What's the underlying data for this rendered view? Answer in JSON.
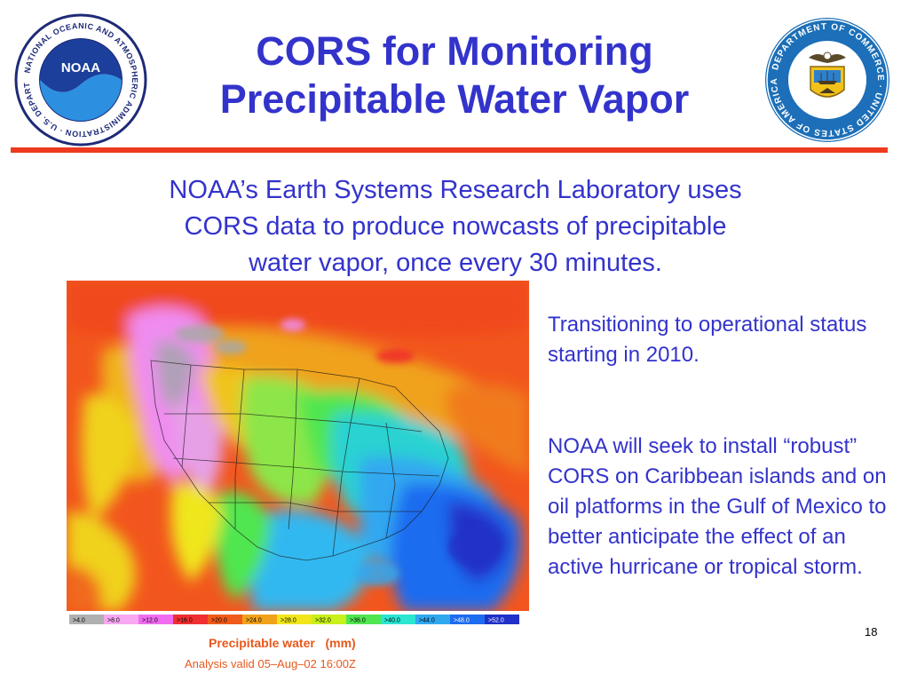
{
  "slide": {
    "title_line1": "CORS for Monitoring",
    "title_line2": "Precipitable Water Vapor",
    "subtitle_line1": "NOAA’s Earth Systems Research Laboratory uses",
    "subtitle_line2": "CORS data to produce nowcasts of precipitable",
    "subtitle_line3": "water vapor, once every 30 minutes.",
    "note1": "Transitioning to operational status starting in 2010.",
    "note2": "NOAA will seek to install “robust” CORS on Caribbean islands and on oil platforms in the Gulf of Mexico to better anticipate the effect of an active hurricane or tropical storm.",
    "page_number": "18"
  },
  "noaa_logo": {
    "text": "NOAA",
    "ring_text": "NATIONAL OCEANIC AND ATMOSPHERIC ADMINISTRATION · U.S. DEPARTMENT OF COMMERCE"
  },
  "doc_logo": {
    "ring_text": "DEPARTMENT OF COMMERCE · UNITED STATES OF AMERICA"
  },
  "map": {
    "legend": [
      ">4.0",
      ">8.0",
      ">12.0",
      ">16.0",
      ">20.0",
      ">24.0",
      ">28.0",
      ">32.0",
      ">36.0",
      ">40.0",
      ">44.0",
      ">48.0",
      ">52.0"
    ],
    "legend_colors": [
      "#b0b0b0",
      "#f7a8f0",
      "#f06cf0",
      "#f03030",
      "#f05a1a",
      "#f0a21a",
      "#f0e61a",
      "#c8f01a",
      "#50e650",
      "#2ae6d2",
      "#30a8f0",
      "#1e6cf0",
      "#2030c8"
    ],
    "caption": "Precipitable water   (mm)",
    "analysis": "Analysis valid 05–Aug–02 16:00Z"
  }
}
